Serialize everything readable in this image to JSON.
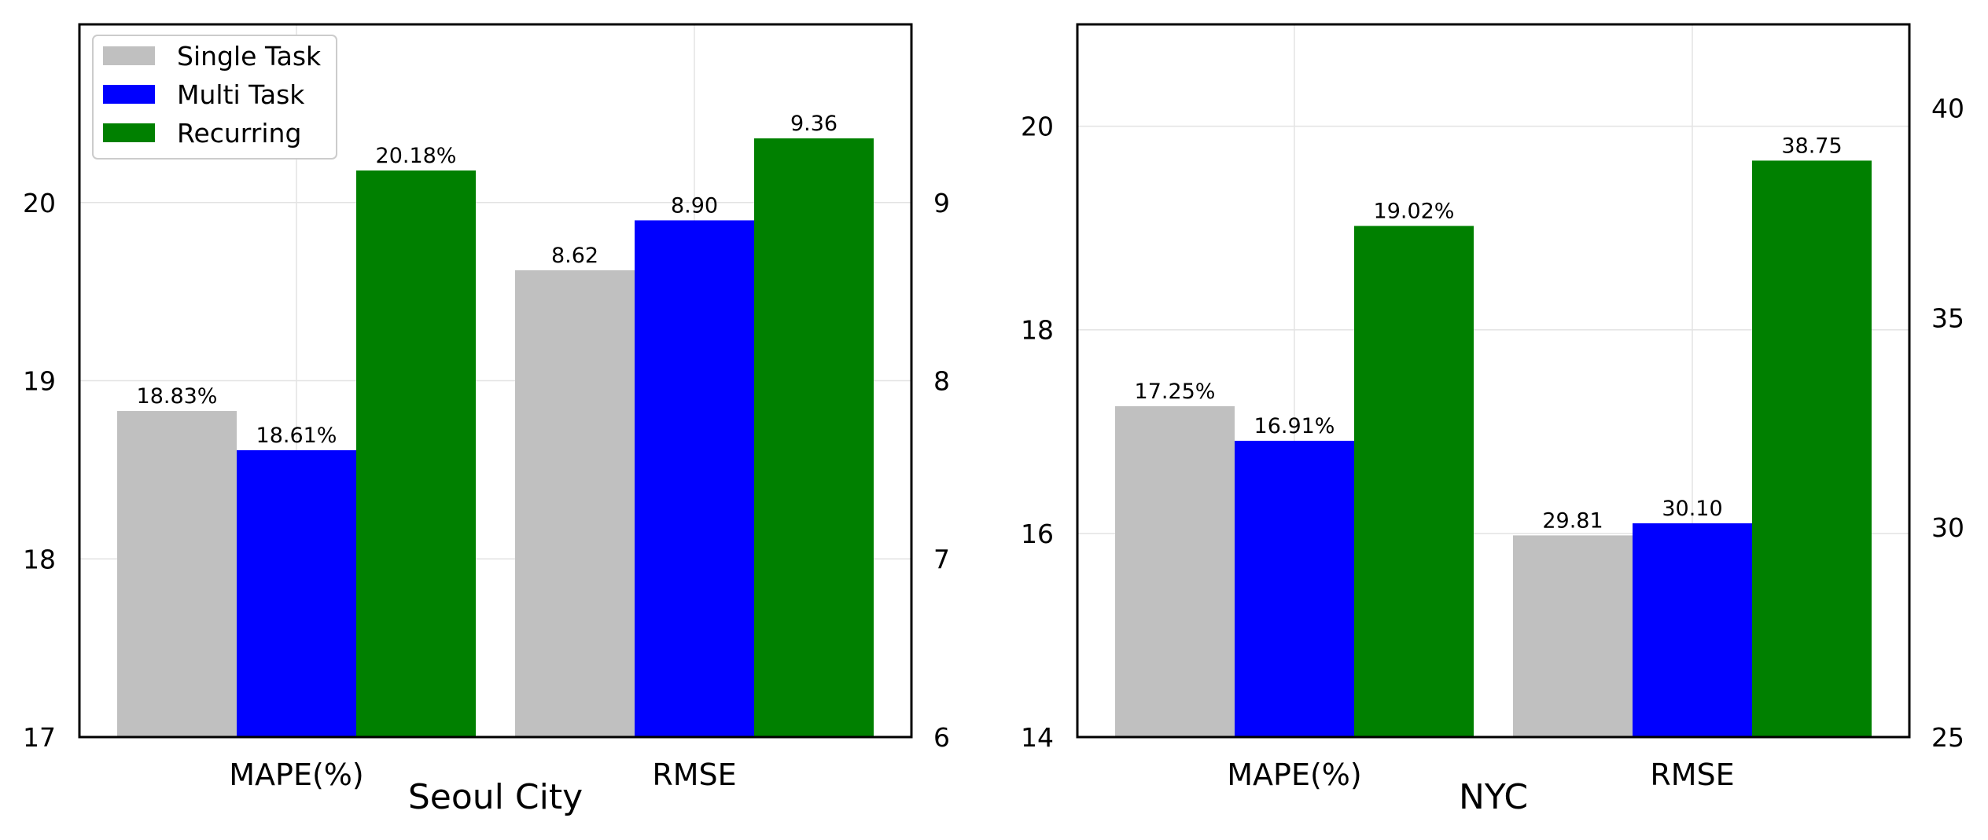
{
  "colors": {
    "single": "#c0c0c0",
    "multi": "#0000ff",
    "recurring": "#008000"
  },
  "legend": {
    "placement": "top-left",
    "entries": [
      "Single Task",
      "Multi Task",
      "Recurring"
    ]
  },
  "chart_data": [
    {
      "type": "bar",
      "title": "Seoul City",
      "categories": [
        "MAPE(%)",
        "RMSE"
      ],
      "grid": true,
      "left_axis": {
        "ylim": [
          17,
          21
        ],
        "ticks": [
          "17",
          "18",
          "19",
          "20"
        ]
      },
      "right_axis": {
        "ylim": [
          6,
          10
        ],
        "ticks": [
          "6",
          "7",
          "8",
          "9"
        ]
      },
      "series": [
        {
          "name": "Single Task",
          "values": [
            18.83,
            8.62
          ],
          "labels": [
            "18.83%",
            "8.62"
          ]
        },
        {
          "name": "Multi Task",
          "values": [
            18.61,
            8.9
          ],
          "labels": [
            "18.61%",
            "8.90"
          ]
        },
        {
          "name": "Recurring",
          "values": [
            20.18,
            9.36
          ],
          "labels": [
            "20.18%",
            "9.36"
          ]
        }
      ]
    },
    {
      "type": "bar",
      "title": "NYC",
      "categories": [
        "MAPE(%)",
        "RMSE"
      ],
      "grid": true,
      "left_axis": {
        "ylim": [
          14,
          21
        ],
        "ticks": [
          "14",
          "16",
          "18",
          "20"
        ]
      },
      "right_axis": {
        "ylim": [
          25,
          42
        ],
        "ticks": [
          "25",
          "30",
          "35",
          "40"
        ]
      },
      "series": [
        {
          "name": "Single Task",
          "values": [
            17.25,
            29.81
          ],
          "labels": [
            "17.25%",
            "29.81"
          ]
        },
        {
          "name": "Multi Task",
          "values": [
            16.91,
            30.1
          ],
          "labels": [
            "16.91%",
            "30.10"
          ]
        },
        {
          "name": "Recurring",
          "values": [
            19.02,
            38.75
          ],
          "labels": [
            "19.02%",
            "38.75"
          ]
        }
      ]
    }
  ]
}
